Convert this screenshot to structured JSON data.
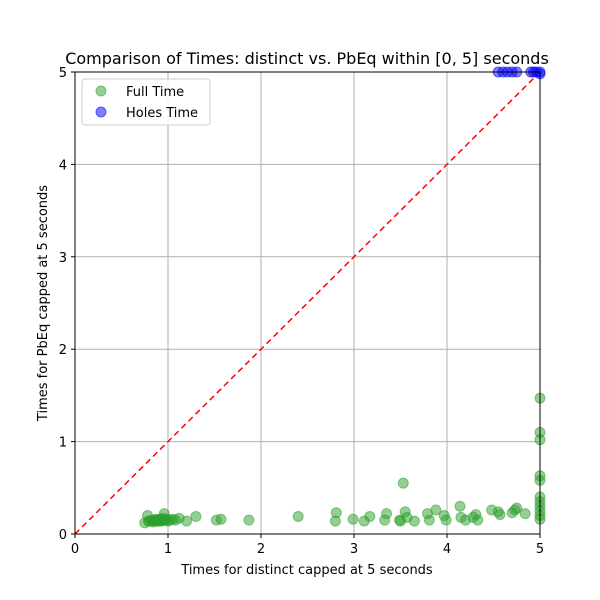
{
  "chart_data": {
    "type": "scatter",
    "title": "Comparison of Times: distinct vs. PbEq within [0, 5] seconds",
    "xlabel": "Times for distinct capped at 5 seconds",
    "ylabel": "Times for PbEq capped at 5 seconds",
    "xlim": [
      0,
      5
    ],
    "ylim": [
      0,
      5
    ],
    "xticks": [
      "0",
      "1",
      "2",
      "3",
      "4",
      "5"
    ],
    "yticks": [
      "0",
      "1",
      "2",
      "3",
      "4",
      "5"
    ],
    "grid": true,
    "legend_position": "top-left",
    "reference_line": {
      "from": [
        0,
        0
      ],
      "to": [
        5,
        5
      ],
      "style": "dashed",
      "color": "#ff0000"
    },
    "series": [
      {
        "name": "Full Time",
        "color": "#2ca02c",
        "points": [
          [
            0.75,
            0.12
          ],
          [
            0.78,
            0.2
          ],
          [
            0.79,
            0.14
          ],
          [
            0.8,
            0.14
          ],
          [
            0.82,
            0.15
          ],
          [
            0.84,
            0.13
          ],
          [
            0.85,
            0.15
          ],
          [
            0.86,
            0.14
          ],
          [
            0.87,
            0.16
          ],
          [
            0.88,
            0.14
          ],
          [
            0.89,
            0.15
          ],
          [
            0.9,
            0.14
          ],
          [
            0.91,
            0.16
          ],
          [
            0.92,
            0.15
          ],
          [
            0.93,
            0.14
          ],
          [
            0.94,
            0.17
          ],
          [
            0.95,
            0.15
          ],
          [
            0.96,
            0.22
          ],
          [
            0.97,
            0.15
          ],
          [
            0.98,
            0.16
          ],
          [
            1.0,
            0.14
          ],
          [
            1.02,
            0.15
          ],
          [
            1.05,
            0.16
          ],
          [
            1.08,
            0.15
          ],
          [
            1.12,
            0.17
          ],
          [
            1.2,
            0.14
          ],
          [
            1.3,
            0.19
          ],
          [
            1.52,
            0.15
          ],
          [
            1.57,
            0.16
          ],
          [
            1.87,
            0.15
          ],
          [
            2.4,
            0.19
          ],
          [
            2.8,
            0.14
          ],
          [
            2.81,
            0.23
          ],
          [
            2.99,
            0.16
          ],
          [
            3.11,
            0.14
          ],
          [
            3.17,
            0.19
          ],
          [
            3.33,
            0.15
          ],
          [
            3.35,
            0.22
          ],
          [
            3.49,
            0.15
          ],
          [
            3.5,
            0.14
          ],
          [
            3.53,
            0.55
          ],
          [
            3.55,
            0.24
          ],
          [
            3.57,
            0.18
          ],
          [
            3.65,
            0.14
          ],
          [
            3.79,
            0.22
          ],
          [
            3.81,
            0.15
          ],
          [
            3.88,
            0.26
          ],
          [
            3.97,
            0.2
          ],
          [
            3.99,
            0.15
          ],
          [
            4.14,
            0.3
          ],
          [
            4.15,
            0.18
          ],
          [
            4.2,
            0.15
          ],
          [
            4.28,
            0.18
          ],
          [
            4.31,
            0.21
          ],
          [
            4.33,
            0.15
          ],
          [
            4.48,
            0.26
          ],
          [
            4.55,
            0.24
          ],
          [
            4.57,
            0.21
          ],
          [
            4.7,
            0.23
          ],
          [
            4.73,
            0.26
          ],
          [
            4.75,
            0.28
          ],
          [
            4.84,
            0.22
          ],
          [
            5.0,
            1.47
          ],
          [
            5.0,
            1.1
          ],
          [
            5.0,
            1.02
          ],
          [
            5.0,
            0.63
          ],
          [
            5.0,
            0.58
          ],
          [
            5.0,
            0.4
          ],
          [
            5.0,
            0.35
          ],
          [
            5.0,
            0.3
          ],
          [
            5.0,
            0.25
          ],
          [
            5.0,
            0.2
          ],
          [
            5.0,
            0.16
          ]
        ]
      },
      {
        "name": "Holes Time",
        "color": "#0000ff",
        "points": [
          [
            4.55,
            5.0
          ],
          [
            4.6,
            5.0
          ],
          [
            4.65,
            5.0
          ],
          [
            4.7,
            5.0
          ],
          [
            4.75,
            5.0
          ],
          [
            4.9,
            5.0
          ],
          [
            4.93,
            5.0
          ],
          [
            4.96,
            5.0
          ],
          [
            5.0,
            5.0
          ],
          [
            5.0,
            4.98
          ]
        ]
      }
    ]
  }
}
